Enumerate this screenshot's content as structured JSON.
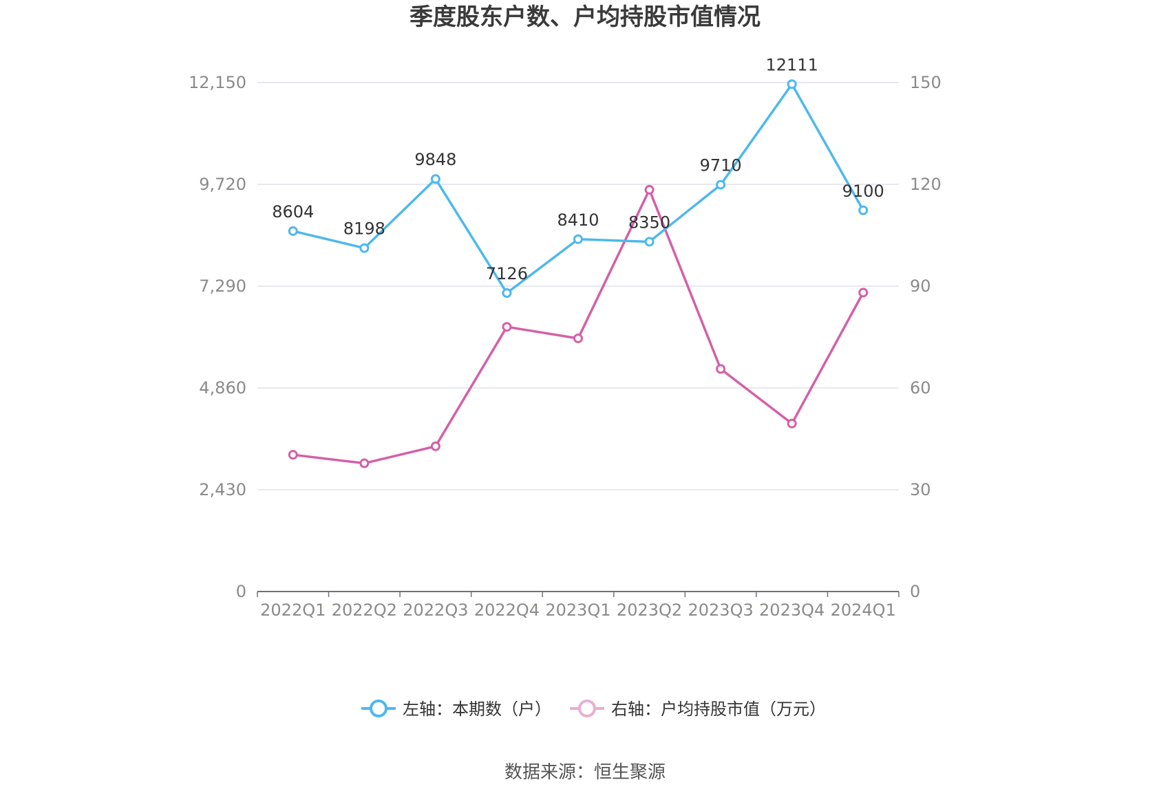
{
  "chart_data": {
    "type": "line",
    "title": "季度股东户数、户均持股市值情况",
    "categories": [
      "2022Q1",
      "2022Q2",
      "2022Q3",
      "2022Q4",
      "2023Q1",
      "2023Q2",
      "2023Q3",
      "2023Q4",
      "2024Q1"
    ],
    "y_left": {
      "ticks": [
        "0",
        "2,430",
        "4,860",
        "7,290",
        "9,720",
        "12,150"
      ],
      "ylim": [
        0,
        12150
      ]
    },
    "y_right": {
      "ticks": [
        "0",
        "30",
        "60",
        "90",
        "120",
        "150"
      ],
      "ylim": [
        0,
        150
      ]
    },
    "grid": true,
    "legend_position": "bottom",
    "series": [
      {
        "name": "左轴：本期数（户）",
        "axis": "left",
        "color": "#4db8ee",
        "values": [
          8604,
          8198,
          9848,
          7126,
          8410,
          8350,
          9710,
          12111,
          9100
        ],
        "labels": [
          "8604",
          "8198",
          "9848",
          "7126",
          "8410",
          "8350",
          "9710",
          "12111",
          "9100"
        ]
      },
      {
        "name": "右轴：户均持股市值（万元）",
        "axis": "right",
        "color": "#d45fa8",
        "legend_color": "#eaaed3",
        "values": [
          40.3,
          37.8,
          42.8,
          78.0,
          74.6,
          118.4,
          65.6,
          49.5,
          88.1
        ]
      }
    ]
  },
  "source_text": "数据来源：恒生聚源"
}
